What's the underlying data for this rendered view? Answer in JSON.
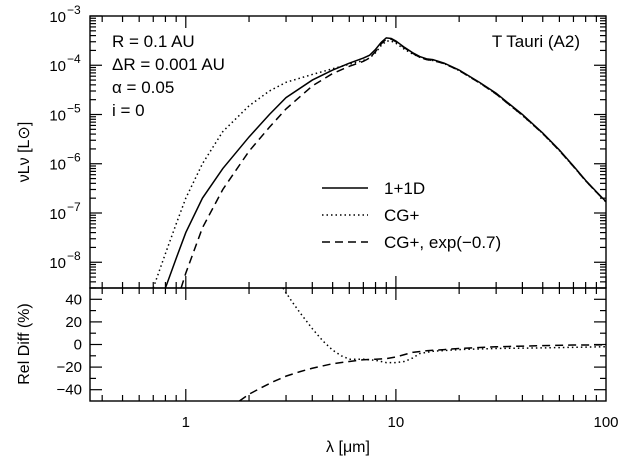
{
  "chart_data": [
    {
      "type": "line",
      "panel": "top",
      "xlabel": "λ [μm]",
      "ylabel": "νLν [L⊙]",
      "xscale": "log",
      "yscale": "log",
      "xlim": [
        0.35,
        100
      ],
      "ylim": [
        3e-09,
        0.001
      ],
      "x_ticks": [
        1,
        10,
        100
      ],
      "x_tick_labels": [
        "1",
        "10",
        "100"
      ],
      "y_ticks": [
        1e-08,
        1e-07,
        1e-06,
        1e-05,
        0.0001,
        0.001
      ],
      "y_tick_labels": [
        {
          "base": "10",
          "exp": "−8"
        },
        {
          "base": "10",
          "exp": "−7"
        },
        {
          "base": "10",
          "exp": "−6"
        },
        {
          "base": "10",
          "exp": "−5"
        },
        {
          "base": "10",
          "exp": "−4"
        },
        {
          "base": "10",
          "exp": "−3"
        }
      ],
      "annotations": {
        "params": [
          "R    = 0.1 AU",
          "ΔR = 0.001 AU",
          "α     = 0.05",
          "i      = 0"
        ],
        "object": "T Tauri (A2)"
      },
      "legend_position": "center-right",
      "series": [
        {
          "name": "1+1D",
          "style": "solid",
          "x": [
            0.8,
            0.9,
            1.0,
            1.2,
            1.5,
            2.0,
            2.5,
            3.0,
            4.0,
            5.0,
            6.0,
            7.0,
            7.5,
            8.0,
            8.5,
            9.0,
            9.5,
            10.0,
            11.0,
            12.0,
            13.0,
            14.0,
            15.0,
            17.0,
            20.0,
            25.0,
            30.0,
            40.0,
            50.0,
            60.0,
            70.0,
            80.0,
            90.0,
            100.0
          ],
          "y": [
            3e-09,
            1.2e-08,
            4e-08,
            2e-07,
            8e-07,
            3.5e-06,
            1e-05,
            2.2e-05,
            5e-05,
            8e-05,
            0.00011,
            0.00014,
            0.00016,
            0.00021,
            0.00029,
            0.00036,
            0.00035,
            0.00031,
            0.00023,
            0.00018,
            0.00015,
            0.000135,
            0.00013,
            0.00011,
            8e-05,
            4.5e-05,
            2.7e-05,
            1e-05,
            4.2e-06,
            1.9e-06,
            9e-07,
            4.6e-07,
            2.7e-07,
            1.7e-07
          ]
        },
        {
          "name": "CG+",
          "style": "dotted",
          "x": [
            0.7,
            0.8,
            0.9,
            1.0,
            1.2,
            1.5,
            2.0,
            2.5,
            3.0,
            4.0,
            5.0,
            6.0,
            7.0,
            7.5,
            8.0,
            8.5,
            9.0,
            9.5,
            10.0,
            11.0,
            12.0,
            13.0,
            14.0,
            15.0,
            17.0,
            20.0,
            25.0,
            30.0,
            40.0,
            50.0,
            60.0,
            70.0,
            80.0,
            90.0,
            100.0
          ],
          "y": [
            3e-09,
            1.5e-08,
            6e-08,
            2e-07,
            1e-06,
            4.5e-06,
            1.5e-05,
            3e-05,
            4.5e-05,
            6.5e-05,
            8.5e-05,
            0.000105,
            0.000125,
            0.00014,
            0.00018,
            0.00025,
            0.00031,
            0.00031,
            0.00028,
            0.00021,
            0.00017,
            0.000145,
            0.00013,
            0.000125,
            0.000108,
            7.8e-05,
            4.4e-05,
            2.6e-05,
            9.6e-06,
            4.1e-06,
            1.85e-06,
            8.8e-07,
            4.5e-07,
            2.65e-07,
            1.68e-07
          ]
        },
        {
          "name": "CG+, exp(−0.7)",
          "style": "dashed",
          "x": [
            0.95,
            1.0,
            1.2,
            1.5,
            2.0,
            2.5,
            3.0,
            4.0,
            5.0,
            6.0,
            7.0,
            7.5,
            8.0,
            8.5,
            9.0,
            9.5,
            10.0,
            11.0,
            12.0,
            13.0,
            14.0,
            15.0,
            17.0,
            20.0,
            25.0,
            30.0,
            40.0,
            50.0,
            60.0,
            70.0,
            80.0,
            90.0,
            100.0
          ],
          "y": [
            3e-09,
            6e-09,
            5e-08,
            3e-07,
            1.8e-06,
            5.5e-06,
            1.3e-05,
            3.8e-05,
            6.8e-05,
            9.5e-05,
            0.00012,
            0.00014,
            0.00019,
            0.00027,
            0.00034,
            0.00034,
            0.0003,
            0.000225,
            0.000175,
            0.000145,
            0.00013,
            0.000125,
            0.000108,
            7.8e-05,
            4.4e-05,
            2.6e-05,
            9.7e-06,
            4.1e-06,
            1.85e-06,
            8.8e-07,
            4.5e-07,
            2.65e-07,
            1.68e-07
          ]
        }
      ]
    },
    {
      "type": "line",
      "panel": "bottom",
      "xlabel": "λ [μm]",
      "ylabel": "Rel Diff (%)",
      "xscale": "log",
      "xlim": [
        0.35,
        100
      ],
      "ylim": [
        -50,
        50
      ],
      "y_ticks": [
        -40,
        -20,
        0,
        20,
        40
      ],
      "y_tick_labels": [
        "−40",
        "−20",
        "0",
        "20",
        "40"
      ],
      "series": [
        {
          "name": "CG+",
          "style": "dotted",
          "x": [
            2.9,
            3.2,
            3.5,
            4.0,
            4.5,
            5.0,
            5.5,
            6.0,
            7.0,
            8.0,
            9.0,
            10.0,
            11.0,
            12.0,
            13.0,
            15.0,
            20.0,
            30.0,
            50.0,
            70.0,
            100.0
          ],
          "y": [
            50,
            38,
            28,
            14,
            3,
            -5,
            -10,
            -13,
            -13,
            -14,
            -16,
            -16,
            -15,
            -12,
            -8,
            -6,
            -4.5,
            -3.5,
            -3,
            -2.5,
            -2
          ]
        },
        {
          "name": "CG+, exp(−0.7)",
          "style": "dashed",
          "x": [
            1.8,
            2.0,
            2.3,
            2.6,
            3.0,
            3.5,
            4.0,
            5.0,
            6.0,
            7.0,
            8.0,
            9.0,
            10.0,
            12.0,
            14.0,
            17.0,
            20.0,
            30.0,
            50.0,
            70.0,
            100.0
          ],
          "y": [
            -50,
            -44,
            -38,
            -33,
            -28,
            -24,
            -21,
            -17,
            -15,
            -13.5,
            -13,
            -12.5,
            -11,
            -7,
            -5.5,
            -4.5,
            -3.5,
            -2,
            -1,
            -0.5,
            -0.3
          ]
        }
      ]
    }
  ]
}
